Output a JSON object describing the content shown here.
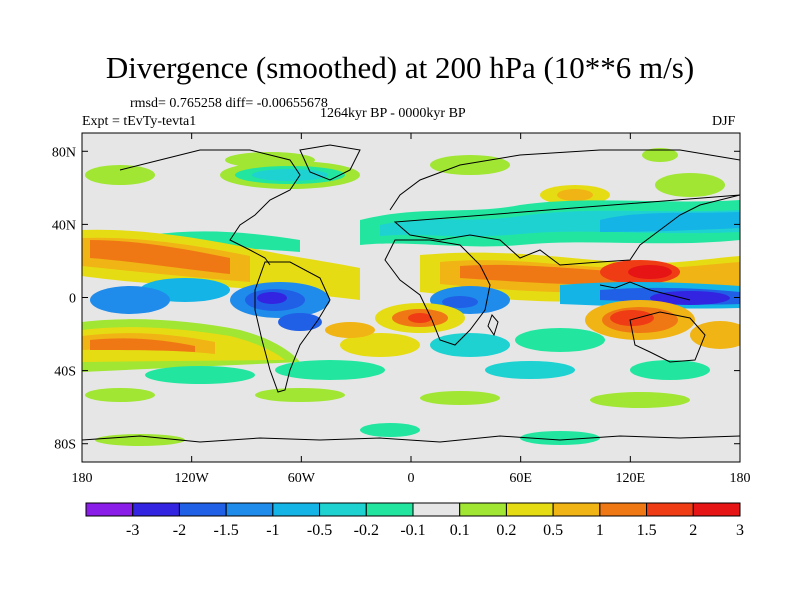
{
  "title": "Divergence (smoothed) at 200 hPa (10**6 m/s)",
  "rmsd_text": "rmsd= 0.765258 diff= -0.00655678",
  "period_text": "1264kyr BP - 0000kyr BP",
  "expt_text": "Expt = tEvTy-tevta1",
  "season": "DJF",
  "map": {
    "projection": "cylindrical equidistant",
    "lon_range": [
      -180,
      180
    ],
    "lat_range": [
      -90,
      90
    ],
    "x_tick_labels": [
      "180",
      "120W",
      "60W",
      "0",
      "60E",
      "120E",
      "180"
    ],
    "y_tick_labels": [
      "80N",
      "40N",
      "0",
      "40S",
      "80S"
    ],
    "x_ticks": [
      -180,
      -120,
      -60,
      0,
      60,
      120,
      180
    ],
    "y_ticks": [
      80,
      40,
      0,
      -40,
      -80
    ],
    "features": [
      {
        "name": "east-pacific-warm-pool",
        "lon": -140,
        "lat": 5,
        "value": 1.5
      },
      {
        "name": "amazon-convergence",
        "lon": -70,
        "lat": -10,
        "value": -3
      },
      {
        "name": "west-pacific-core",
        "lon": 150,
        "lat": 0,
        "value": -3
      },
      {
        "name": "maritime-continent-high",
        "lon": 135,
        "lat": 8,
        "value": 3
      },
      {
        "name": "australia-high",
        "lon": 120,
        "lat": -15,
        "value": 3
      },
      {
        "name": "south-atlantic-high",
        "lon": 5,
        "lat": -15,
        "value": 2
      },
      {
        "name": "indian-ocean-band",
        "lon": 75,
        "lat": 10,
        "value": 1.5
      },
      {
        "name": "southern-ocean-band",
        "lon": -60,
        "lat": -60,
        "value": 0.2
      }
    ]
  },
  "colorbar": {
    "labels": [
      "-3",
      "-2",
      "-1.5",
      "-1",
      "-0.5",
      "-0.2",
      "-0.1",
      "0.1",
      "0.2",
      "0.5",
      "1",
      "1.5",
      "2",
      "3"
    ],
    "colors": [
      "#8a1ee8",
      "#3224e0",
      "#2060e6",
      "#1f8cec",
      "#14b4e6",
      "#1ed2d2",
      "#22e6a0",
      "#e6e6e6",
      "#a0e632",
      "#e6dc14",
      "#f0b414",
      "#f07814",
      "#f03c14",
      "#e61414"
    ]
  },
  "colors": {
    "land_line": "#000000",
    "frame": "#000000"
  }
}
